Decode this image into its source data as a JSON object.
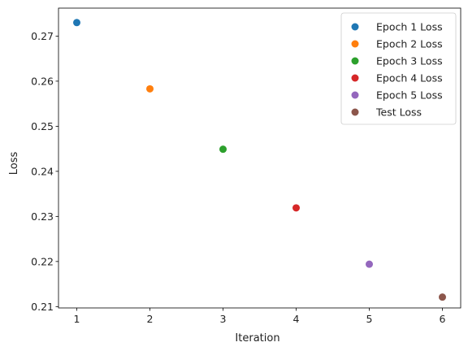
{
  "chart_data": {
    "type": "scatter",
    "title": "",
    "xlabel": "Iteration",
    "ylabel": "Loss",
    "xlim": [
      0.75,
      6.25
    ],
    "ylim": [
      0.2097,
      0.2762
    ],
    "xticks": [
      1,
      2,
      3,
      4,
      5,
      6
    ],
    "xtick_labels": [
      "1",
      "2",
      "3",
      "4",
      "5",
      "6"
    ],
    "yticks": [
      0.21,
      0.22,
      0.23,
      0.24,
      0.25,
      0.26,
      0.27
    ],
    "ytick_labels": [
      "0.21",
      "0.22",
      "0.23",
      "0.24",
      "0.25",
      "0.26",
      "0.27"
    ],
    "grid": false,
    "legend_position": "top-right",
    "series": [
      {
        "name": "Epoch 1 Loss",
        "x": [
          1
        ],
        "y": [
          0.273
        ],
        "color": "#1f77b4"
      },
      {
        "name": "Epoch 2 Loss",
        "x": [
          2
        ],
        "y": [
          0.2583
        ],
        "color": "#ff7f0e"
      },
      {
        "name": "Epoch 3 Loss",
        "x": [
          3
        ],
        "y": [
          0.2449
        ],
        "color": "#2ca02c"
      },
      {
        "name": "Epoch 4 Loss",
        "x": [
          4
        ],
        "y": [
          0.2319
        ],
        "color": "#d62728"
      },
      {
        "name": "Epoch 5 Loss",
        "x": [
          5
        ],
        "y": [
          0.2194
        ],
        "color": "#9467bd"
      },
      {
        "name": "Test Loss",
        "x": [
          6
        ],
        "y": [
          0.2121
        ],
        "color": "#8c564b"
      }
    ]
  }
}
